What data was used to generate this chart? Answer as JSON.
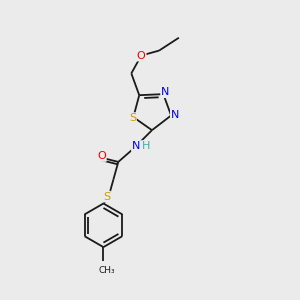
{
  "background_color": "#ebebeb",
  "bond_color": "#1a1a1a",
  "atom_colors": {
    "S": "#c8a000",
    "N": "#0000ee",
    "O": "#ee0000",
    "H": "#44aaaa",
    "C": "#1a1a1a"
  },
  "figsize": [
    3.0,
    3.0
  ],
  "dpi": 100
}
